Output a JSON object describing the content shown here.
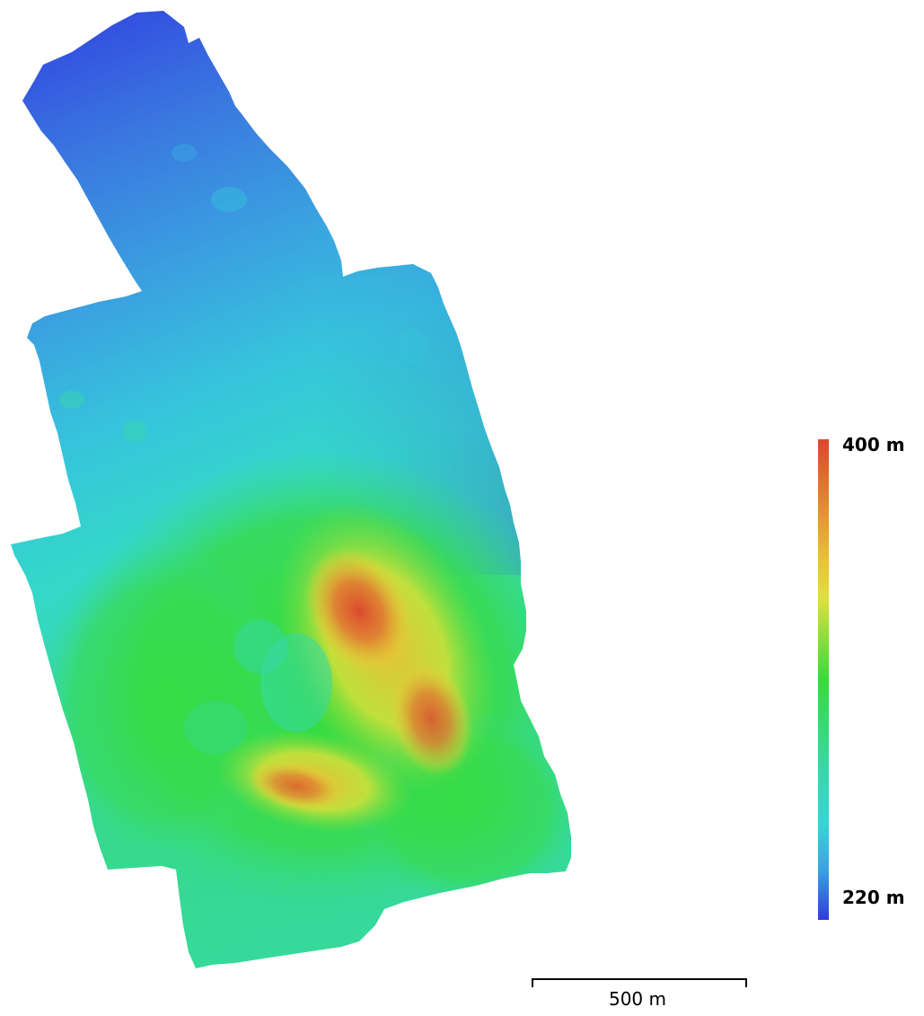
{
  "map": {
    "kind": "digital-elevation-model",
    "colormap": [
      "#2f3be0",
      "#3aa6e0",
      "#36d6d8",
      "#37d98a",
      "#35dc3a",
      "#b9e03a",
      "#e8d836",
      "#e39a34",
      "#e0452f"
    ]
  },
  "legend": {
    "max_label": "400 m",
    "min_label": "220 m",
    "max_value": 400,
    "min_value": 220,
    "unit": "m"
  },
  "scale_bar": {
    "label": "500 m"
  }
}
